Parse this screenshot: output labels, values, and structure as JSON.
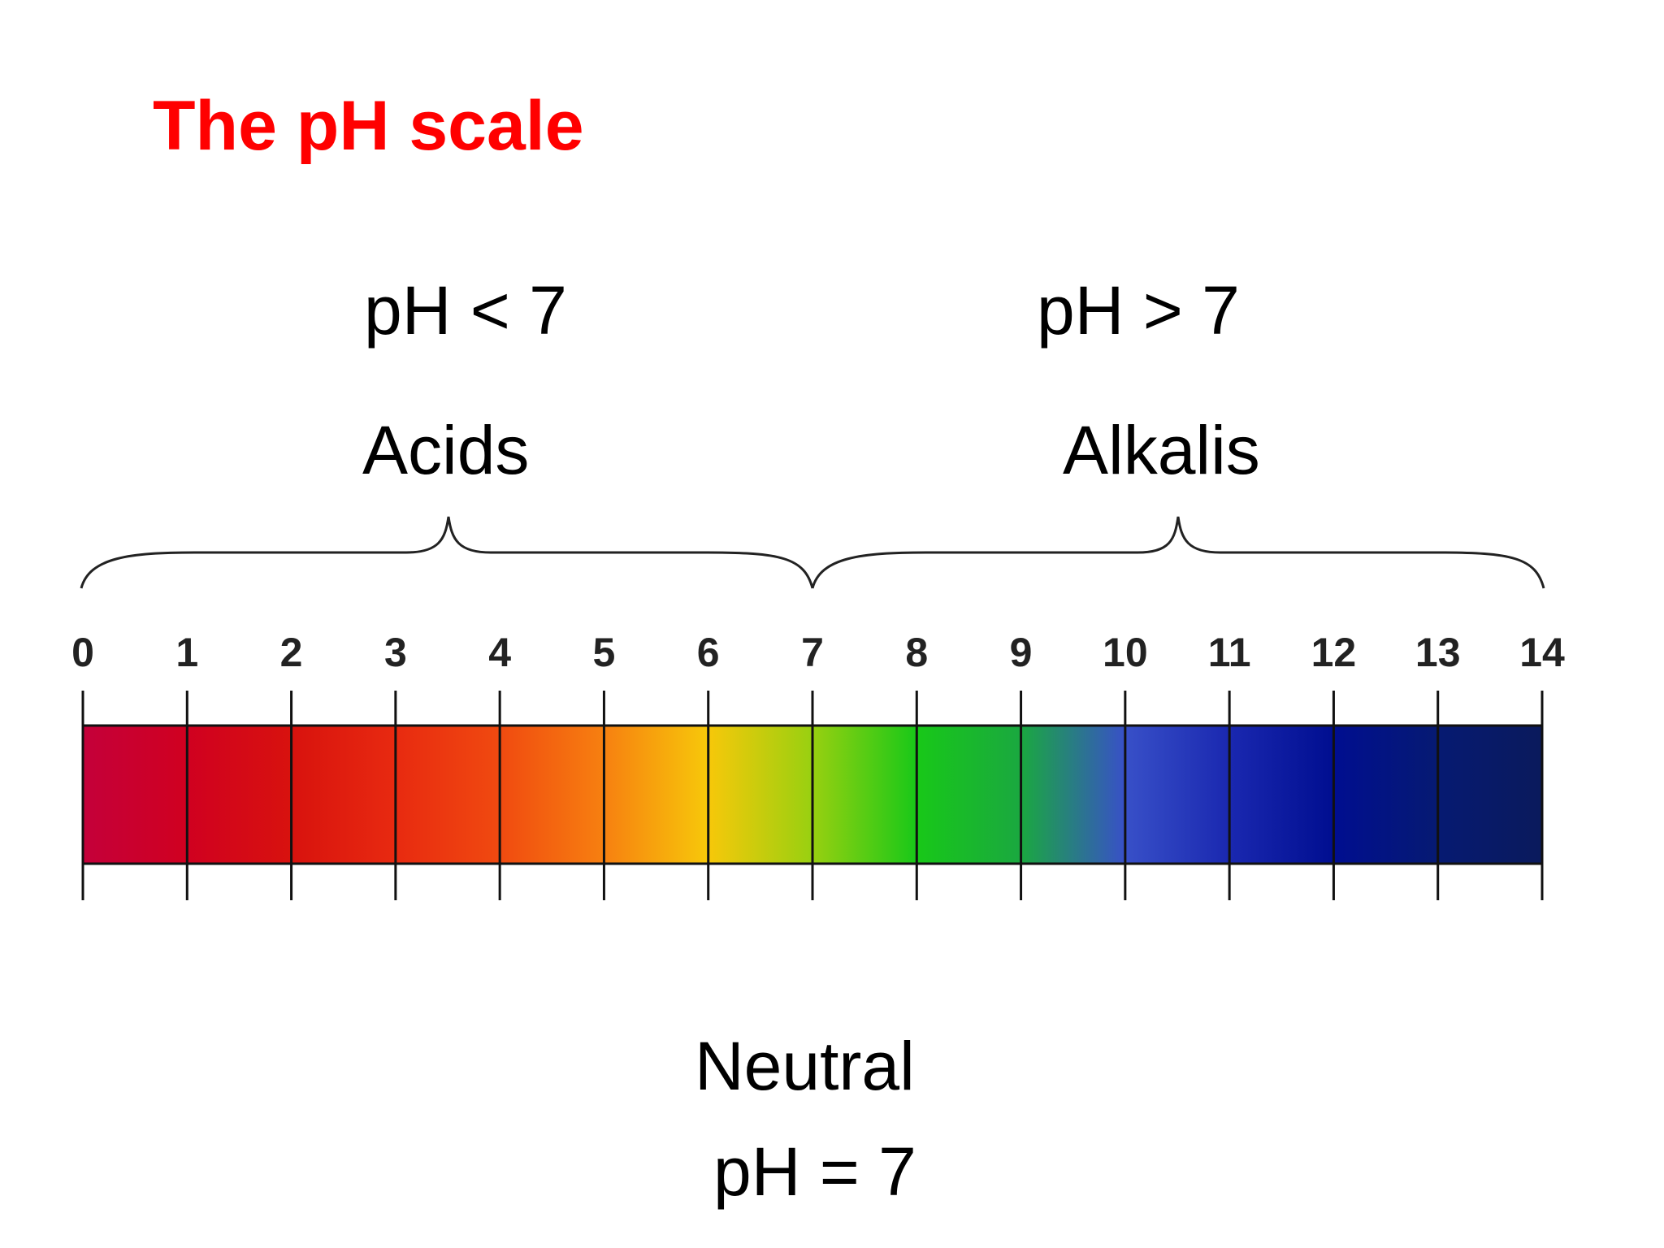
{
  "title": "The pH scale",
  "acids": {
    "condition": "pH < 7",
    "name": "Acids"
  },
  "alkalis": {
    "condition": "pH > 7",
    "name": "Alkalis"
  },
  "neutral": {
    "name": "Neutral",
    "condition": "pH = 7"
  },
  "colors": {
    "title": "#ff0000",
    "text": "#000000"
  },
  "scale": {
    "min": 0,
    "max": 14,
    "labels": [
      "0",
      "1",
      "2",
      "3",
      "4",
      "5",
      "6",
      "7",
      "8",
      "9",
      "10",
      "11",
      "12",
      "13",
      "14"
    ],
    "gradient_stops": [
      {
        "ph": 0,
        "color": "#c4003a"
      },
      {
        "ph": 1,
        "color": "#d00020"
      },
      {
        "ph": 2,
        "color": "#d8120e"
      },
      {
        "ph": 3,
        "color": "#e82a10"
      },
      {
        "ph": 4,
        "color": "#f04a10"
      },
      {
        "ph": 5,
        "color": "#f78010"
      },
      {
        "ph": 6,
        "color": "#f7c80a"
      },
      {
        "ph": 7,
        "color": "#98d010"
      },
      {
        "ph": 8,
        "color": "#18c818"
      },
      {
        "ph": 9,
        "color": "#1aa840"
      },
      {
        "ph": 10,
        "color": "#3850c8"
      },
      {
        "ph": 11,
        "color": "#1a28b0"
      },
      {
        "ph": 12,
        "color": "#000e90"
      },
      {
        "ph": 13,
        "color": "#061a72"
      },
      {
        "ph": 14,
        "color": "#0a1a5c"
      }
    ]
  }
}
